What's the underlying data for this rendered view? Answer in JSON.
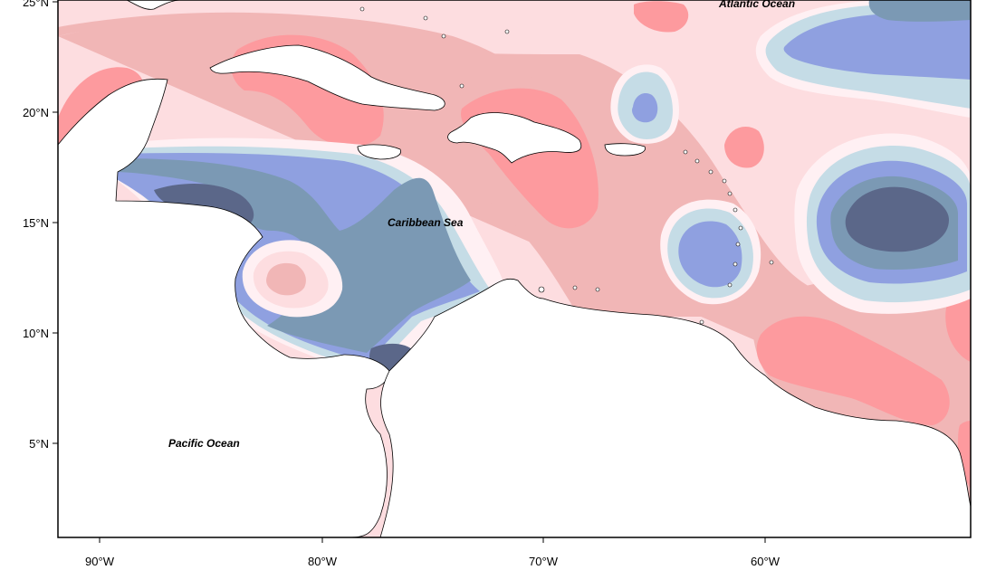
{
  "map": {
    "colors": {
      "anomaly_neg_3": "#5b6789",
      "anomaly_neg_2": "#7b99b4",
      "anomaly_neg_1": "#8fa0e0",
      "anomaly_neg_0": "#c5dce6",
      "anomaly_zero": "#fff0f3",
      "anomaly_pos_1": "#fddde0",
      "anomaly_pos_2": "#f1b6b6",
      "anomaly_pos_3": "#fd9a9e",
      "land": "#ffffff",
      "coastline": "#000000"
    },
    "labels": {
      "atlantic": "Atlantic Ocean",
      "caribbean": "Caribbean Sea",
      "pacific": "Pacific Ocean"
    },
    "lat_ticks": [
      "25°N",
      "20°N",
      "15°N",
      "10°N",
      "5°N"
    ],
    "lon_ticks": [
      "90°W",
      "80°W",
      "70°W",
      "60°W"
    ]
  }
}
